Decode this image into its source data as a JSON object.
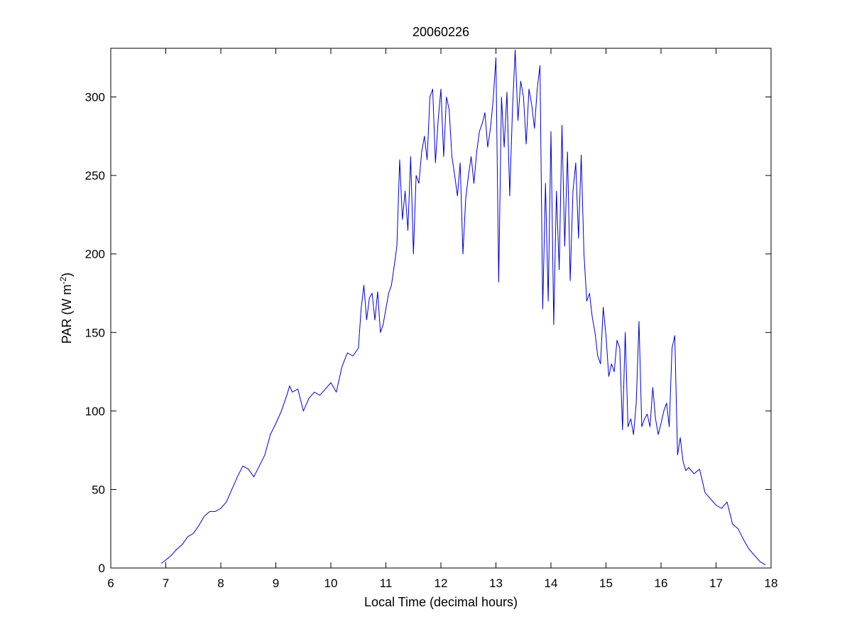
{
  "chart_data": {
    "type": "line",
    "title": "20060226",
    "xlabel": "Local Time (decimal hours)",
    "ylabel_main": "PAR (W m",
    "ylabel_sup": "-2",
    "ylabel_close": ")",
    "xlim": [
      6,
      18
    ],
    "ylim": [
      0,
      331
    ],
    "xticks": [
      6,
      7,
      8,
      9,
      10,
      11,
      12,
      13,
      14,
      15,
      16,
      17,
      18
    ],
    "yticks": [
      0,
      50,
      100,
      150,
      200,
      250,
      300
    ],
    "grid": false,
    "line_color": "#0000cc",
    "series": [
      {
        "x": [
          6.92,
          7.0,
          7.1,
          7.2,
          7.3,
          7.4,
          7.5,
          7.6,
          7.7,
          7.8,
          7.9,
          8.0,
          8.1,
          8.2,
          8.3,
          8.4,
          8.5,
          8.6,
          8.7,
          8.8,
          8.9,
          9.0,
          9.1,
          9.2,
          9.25,
          9.3,
          9.4,
          9.5,
          9.6,
          9.7,
          9.8,
          9.9,
          10.0,
          10.1,
          10.2,
          10.3,
          10.4,
          10.5,
          10.55,
          10.6,
          10.65,
          10.7,
          10.75,
          10.8,
          10.85,
          10.9,
          10.95,
          11.0,
          11.05,
          11.1,
          11.15,
          11.2,
          11.25,
          11.3,
          11.35,
          11.4,
          11.45,
          11.5,
          11.55,
          11.6,
          11.65,
          11.7,
          11.75,
          11.8,
          11.85,
          11.9,
          11.95,
          12.0,
          12.05,
          12.1,
          12.15,
          12.2,
          12.25,
          12.3,
          12.35,
          12.4,
          12.45,
          12.5,
          12.55,
          12.6,
          12.65,
          12.7,
          12.75,
          12.8,
          12.85,
          12.9,
          12.95,
          13.0,
          13.05,
          13.1,
          13.15,
          13.2,
          13.25,
          13.3,
          13.35,
          13.4,
          13.45,
          13.5,
          13.55,
          13.6,
          13.65,
          13.7,
          13.75,
          13.8,
          13.85,
          13.9,
          13.95,
          14.0,
          14.05,
          14.1,
          14.15,
          14.2,
          14.25,
          14.3,
          14.35,
          14.4,
          14.45,
          14.5,
          14.55,
          14.6,
          14.65,
          14.7,
          14.75,
          14.8,
          14.85,
          14.9,
          14.95,
          15.0,
          15.05,
          15.1,
          15.15,
          15.2,
          15.25,
          15.3,
          15.35,
          15.4,
          15.45,
          15.5,
          15.55,
          15.6,
          15.65,
          15.7,
          15.75,
          15.8,
          15.85,
          15.9,
          15.95,
          16.0,
          16.05,
          16.1,
          16.15,
          16.2,
          16.25,
          16.3,
          16.35,
          16.4,
          16.45,
          16.5,
          16.6,
          16.7,
          16.8,
          16.9,
          17.0,
          17.1,
          17.2,
          17.3,
          17.4,
          17.5,
          17.6,
          17.7,
          17.8,
          17.9
        ],
        "y": [
          3,
          5,
          8,
          12,
          15,
          20,
          22,
          27,
          33,
          36,
          36,
          38,
          42,
          50,
          58,
          65,
          63,
          58,
          65,
          72,
          85,
          92,
          100,
          110,
          116,
          112,
          114,
          100,
          108,
          112,
          110,
          114,
          118,
          112,
          128,
          137,
          135,
          140,
          165,
          180,
          158,
          172,
          175,
          158,
          176,
          150,
          155,
          165,
          175,
          180,
          192,
          205,
          260,
          222,
          240,
          215,
          262,
          200,
          250,
          245,
          265,
          275,
          260,
          300,
          305,
          258,
          285,
          305,
          262,
          300,
          292,
          262,
          250,
          237,
          258,
          200,
          235,
          250,
          262,
          245,
          265,
          278,
          283,
          290,
          268,
          280,
          298,
          325,
          182,
          300,
          268,
          303,
          237,
          292,
          330,
          285,
          310,
          300,
          270,
          305,
          295,
          280,
          305,
          320,
          165,
          245,
          170,
          278,
          155,
          240,
          190,
          282,
          205,
          265,
          183,
          240,
          258,
          210,
          263,
          200,
          170,
          175,
          160,
          150,
          135,
          130,
          166,
          148,
          122,
          130,
          125,
          145,
          140,
          88,
          150,
          90,
          95,
          85,
          105,
          157,
          90,
          95,
          98,
          90,
          115,
          95,
          85,
          92,
          100,
          105,
          90,
          140,
          148,
          72,
          83,
          68,
          62,
          64,
          60,
          63,
          48,
          44,
          40,
          38,
          42,
          28,
          25,
          18,
          12,
          8,
          4,
          2
        ]
      }
    ]
  }
}
